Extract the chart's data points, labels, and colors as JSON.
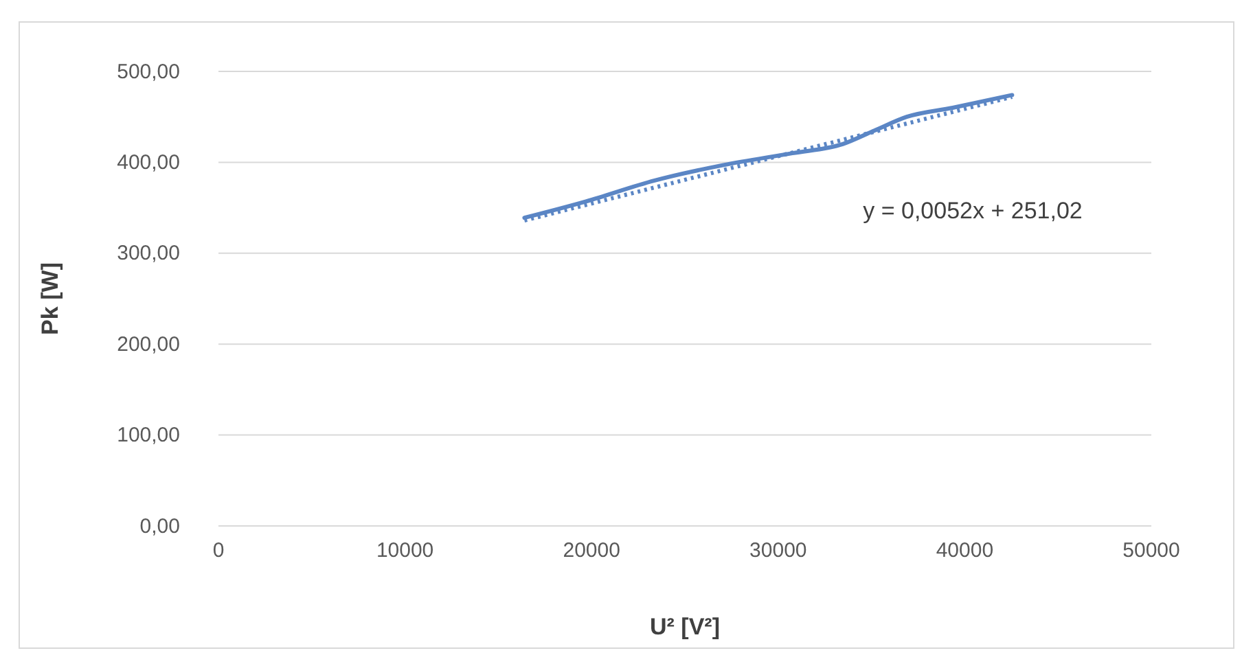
{
  "chart_data": {
    "type": "line",
    "xlabel": "U² [V²]",
    "ylabel": "Pk [W]",
    "xlim": [
      0,
      50000
    ],
    "xticks": [
      0,
      10000,
      20000,
      30000,
      40000,
      50000
    ],
    "ylim": [
      0,
      500
    ],
    "yticks": [
      {
        "value": 0,
        "label": "0,00"
      },
      {
        "value": 100,
        "label": "100,00"
      },
      {
        "value": 200,
        "label": "200,00"
      },
      {
        "value": 300,
        "label": "300,00"
      },
      {
        "value": 400,
        "label": "400,00"
      },
      {
        "value": 500,
        "label": "500,00"
      }
    ],
    "grid": "y",
    "marker": "none",
    "series": [
      {
        "color": "#5b86c5",
        "line_style": "solid",
        "x": [
          16400,
          19700,
          23380,
          27070,
          30760,
          33460,
          35170,
          36890,
          39350,
          42540
        ],
        "values": [
          339,
          357,
          380,
          397,
          410,
          420,
          435,
          450,
          460,
          474
        ]
      },
      {
        "color": "#5b86c5",
        "line_style": "dotted",
        "x": [
          16400,
          42540
        ],
        "values": [
          336,
          472
        ]
      }
    ],
    "annotations": [
      "y = 0,0052x + 251,02"
    ]
  }
}
